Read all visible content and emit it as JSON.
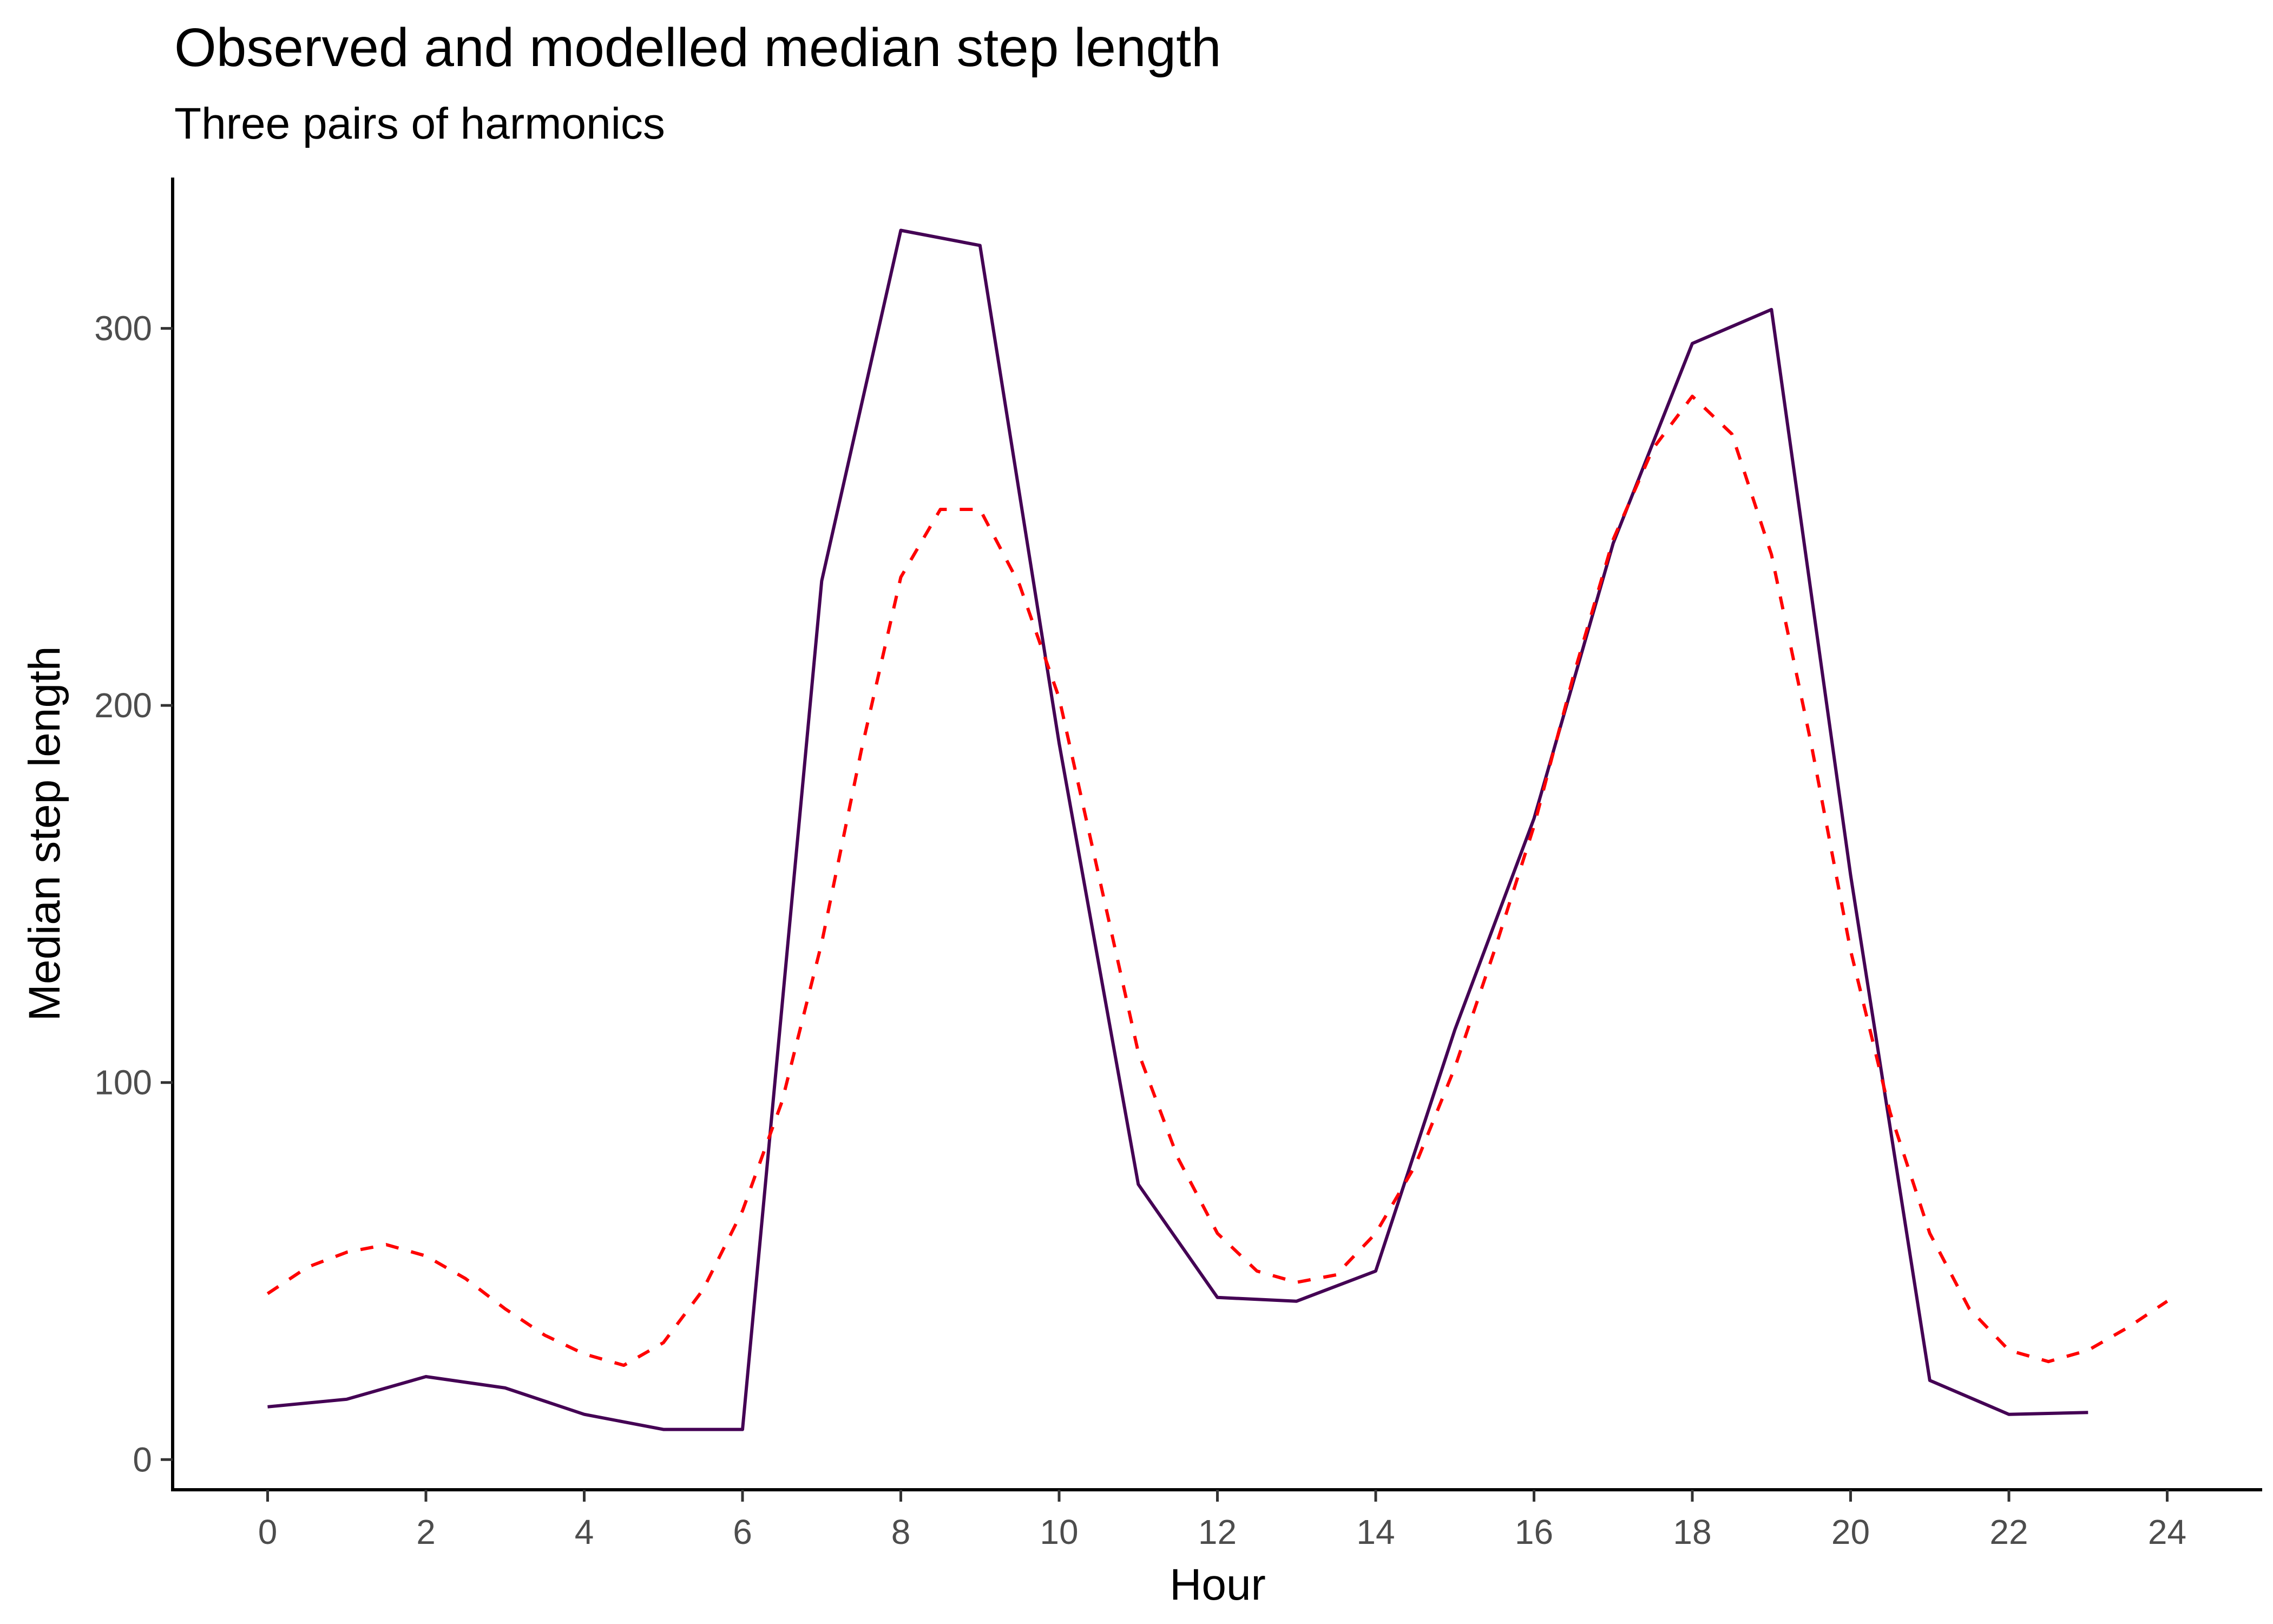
{
  "chart_data": {
    "type": "line",
    "title": "Observed and modelled median step length",
    "subtitle": "Three pairs of harmonics",
    "xlabel": "Hour",
    "ylabel": "Median step length",
    "xlim": [
      -1.2,
      25.2
    ],
    "ylim": [
      -8,
      340
    ],
    "x_ticks": [
      0,
      2,
      4,
      6,
      8,
      10,
      12,
      14,
      16,
      18,
      20,
      22,
      24
    ],
    "y_ticks": [
      0,
      100,
      200,
      300
    ],
    "grid": false,
    "legend": "none",
    "series": [
      {
        "color": "#440154",
        "dash": "solid",
        "x": [
          0,
          1,
          2,
          3,
          4,
          5,
          6,
          7,
          8,
          9,
          10,
          11,
          12,
          13,
          14,
          15,
          16,
          17,
          18,
          19,
          20,
          21,
          22,
          23
        ],
        "y": [
          14,
          16,
          22,
          19,
          12,
          8,
          8,
          233,
          326,
          322,
          190,
          73,
          43,
          42,
          50,
          114,
          170,
          243,
          296,
          305,
          155,
          21,
          12,
          12.5
        ]
      },
      {
        "color": "#ff0000",
        "dash": "dashed",
        "x": [
          0,
          0.5,
          1,
          1.5,
          2,
          2.5,
          3,
          3.5,
          4,
          4.5,
          5,
          5.5,
          6,
          6.5,
          7,
          7.5,
          8,
          8.5,
          9,
          9.5,
          10,
          10.5,
          11,
          11.5,
          12,
          12.5,
          13,
          13.5,
          14,
          14.5,
          15,
          15.5,
          16,
          16.5,
          17,
          17.5,
          18,
          18.5,
          19,
          19.5,
          20,
          20.5,
          21,
          21.5,
          22,
          22.5,
          23,
          23.5,
          24
        ],
        "y": [
          44,
          51,
          55,
          57,
          54,
          48,
          40,
          33,
          28,
          25,
          31,
          45,
          66,
          95,
          137,
          188,
          234,
          252,
          252,
          232,
          202,
          155,
          108,
          80,
          60,
          50,
          47,
          49,
          60,
          78,
          104,
          135,
          168,
          208,
          244,
          268,
          282,
          272,
          240,
          190,
          135,
          92,
          60,
          40,
          29,
          26,
          29,
          35,
          42
        ]
      }
    ]
  }
}
